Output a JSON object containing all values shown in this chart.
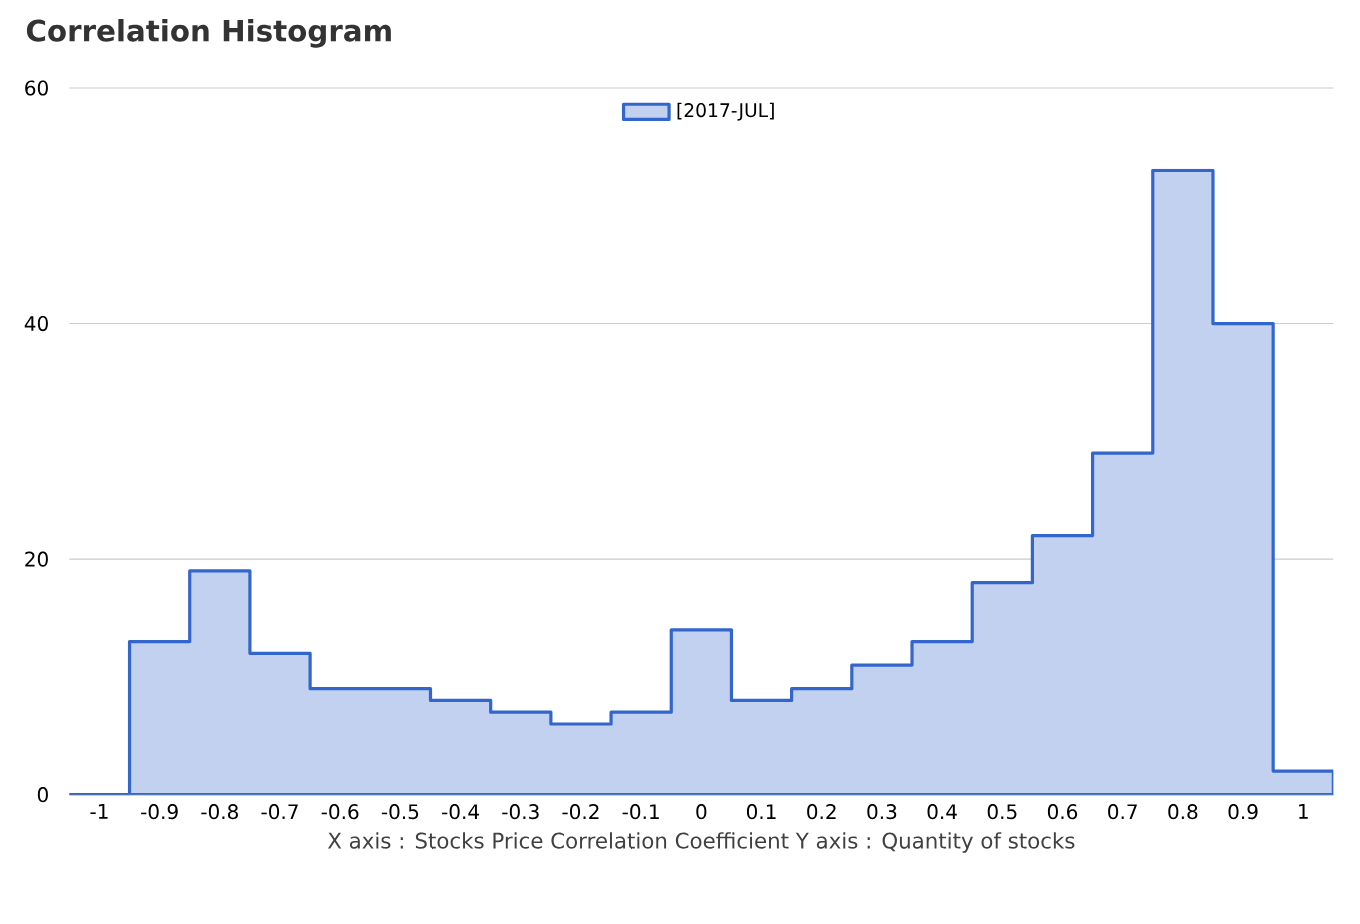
{
  "chart_data": {
    "type": "histogram",
    "title": "Correlation Histogram",
    "xlabel": "X axis : Stocks Price Correlation Coefficient  Y axis : Quantity of stocks",
    "bins": [
      -1.05,
      -0.95,
      -0.85,
      -0.75,
      -0.65,
      -0.55,
      -0.45,
      -0.35,
      -0.25,
      -0.15,
      -0.05,
      0.05,
      0.15,
      0.25,
      0.35,
      0.45,
      0.55,
      0.65,
      0.75,
      0.85,
      0.95,
      1.05
    ],
    "series": [
      {
        "name": "[2017-JUL]",
        "color": "#3366cc",
        "values": [
          0,
          13,
          19,
          12,
          9,
          9,
          8,
          7,
          6,
          7,
          14,
          8,
          9,
          11,
          13,
          18,
          22,
          29,
          53,
          40,
          2
        ]
      }
    ],
    "xlim": [
      -1.05,
      1.05
    ],
    "xticks": [
      -1,
      -0.9,
      -0.8,
      -0.7,
      -0.6,
      -0.5,
      -0.4,
      -0.3,
      -0.2,
      -0.1,
      0,
      0.1,
      0.2,
      0.3,
      0.4,
      0.5,
      0.6,
      0.7,
      0.8,
      0.9,
      1
    ],
    "ylim": [
      0,
      60
    ],
    "yticks": [
      0,
      20,
      40,
      60
    ],
    "grid": "y",
    "legend": "top"
  }
}
